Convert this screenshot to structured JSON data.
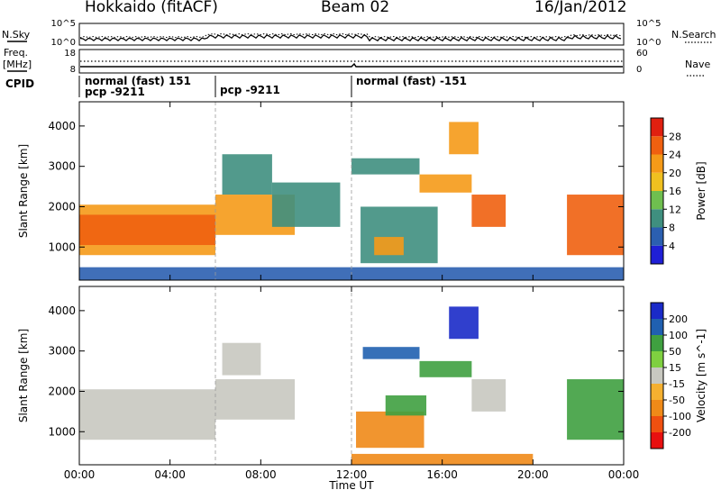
{
  "header": {
    "station": "Hokkaido (fitACF)",
    "beam": "Beam 02",
    "date": "16/Jan/2012"
  },
  "status_panels": {
    "nsky_label": "N.Sky",
    "nsearch_label": "N.Search",
    "freq_label_1": "Freq.",
    "freq_label_2": "[MHz]",
    "nave_label": "Nave",
    "cpid_label": "CPID",
    "noise_ticks_left": [
      "10^5",
      "10^0"
    ],
    "noise_ticks_right": [
      "10^5",
      "10^0"
    ],
    "freq_ticks": [
      "18",
      "8"
    ],
    "nave_ticks": [
      "60",
      "0"
    ],
    "cpid_segments": [
      {
        "line1": "normal (fast) 151",
        "line2": "pcp -9211",
        "start_h": 0
      },
      {
        "line1": "",
        "line2": "pcp -9211",
        "start_h": 6
      },
      {
        "line1": "normal (fast) -151",
        "line2": "",
        "start_h": 12
      }
    ]
  },
  "chart_data": [
    {
      "type": "heatmap",
      "name": "power",
      "xlabel": "Time UT",
      "ylabel": "Slant Range [km]",
      "x_ticks": [
        "00:00",
        "04:00",
        "08:00",
        "12:00",
        "16:00",
        "20:00",
        "00:00"
      ],
      "y_ticks": [
        1000,
        2000,
        3000,
        4000
      ],
      "xlim_hours": [
        0,
        24
      ],
      "ylim_km": [
        180,
        4600
      ],
      "colorbar_label": "Power [dB]",
      "colorbar_ticks": [
        4,
        8,
        12,
        16,
        20,
        24,
        28
      ],
      "colorbar_colors": [
        "#1f1fd6",
        "#2b5fb0",
        "#3f8f7f",
        "#6fbf4f",
        "#f0c020",
        "#f59a18",
        "#f06010",
        "#e02010"
      ],
      "regions": [
        {
          "t0": 0.0,
          "t1": 6.0,
          "r0": 800,
          "r1": 2050,
          "value": 24
        },
        {
          "t0": 0.0,
          "t1": 6.0,
          "r0": 1050,
          "r1": 1800,
          "value": 28
        },
        {
          "t0": 6.0,
          "t1": 9.5,
          "r0": 1300,
          "r1": 2300,
          "value": 22
        },
        {
          "t0": 6.3,
          "t1": 8.5,
          "r0": 2300,
          "r1": 3300,
          "value": 10
        },
        {
          "t0": 8.5,
          "t1": 11.5,
          "r0": 1500,
          "r1": 2600,
          "value": 9
        },
        {
          "t0": 12.0,
          "t1": 15.0,
          "r0": 2800,
          "r1": 3200,
          "value": 9
        },
        {
          "t0": 12.4,
          "t1": 15.8,
          "r0": 600,
          "r1": 2000,
          "value": 9
        },
        {
          "t0": 13.0,
          "t1": 14.3,
          "r0": 800,
          "r1": 1250,
          "value": 22
        },
        {
          "t0": 15.0,
          "t1": 17.3,
          "r0": 2350,
          "r1": 2800,
          "value": 22
        },
        {
          "t0": 17.3,
          "t1": 18.8,
          "r0": 1500,
          "r1": 2300,
          "value": 26
        },
        {
          "t0": 16.3,
          "t1": 17.6,
          "r0": 3300,
          "r1": 4100,
          "value": 22
        },
        {
          "t0": 21.5,
          "t1": 24.0,
          "r0": 800,
          "r1": 2300,
          "value": 25
        },
        {
          "t0": 0.0,
          "t1": 24.0,
          "r0": 180,
          "r1": 500,
          "value": 6
        }
      ]
    },
    {
      "type": "heatmap",
      "name": "velocity",
      "xlabel": "Time UT",
      "ylabel": "Slant Range [km]",
      "x_ticks": [
        "00:00",
        "04:00",
        "08:00",
        "12:00",
        "16:00",
        "20:00",
        "00:00"
      ],
      "y_ticks": [
        1000,
        2000,
        3000,
        4000
      ],
      "xlim_hours": [
        0,
        24
      ],
      "ylim_km": [
        180,
        4600
      ],
      "colorbar_label": "Velocity [m s^-1]",
      "colorbar_ticks": [
        -200,
        -100,
        -50,
        -15,
        15,
        50,
        100,
        200
      ],
      "colorbar_colors": [
        "#e81010",
        "#f05010",
        "#f08a18",
        "#f5b030",
        "#c8c8c0",
        "#7fd040",
        "#3fa040",
        "#2060b0",
        "#1a2ac8"
      ],
      "regions": [
        {
          "t0": 0.0,
          "t1": 6.0,
          "r0": 800,
          "r1": 2050,
          "value": 0
        },
        {
          "t0": 6.0,
          "t1": 9.5,
          "r0": 1300,
          "r1": 2300,
          "value": 0
        },
        {
          "t0": 6.3,
          "t1": 8.0,
          "r0": 2400,
          "r1": 3200,
          "value": 0
        },
        {
          "t0": 12.2,
          "t1": 15.2,
          "r0": 600,
          "r1": 1500,
          "value": -80
        },
        {
          "t0": 13.5,
          "t1": 15.3,
          "r0": 1400,
          "r1": 1900,
          "value": 60
        },
        {
          "t0": 15.0,
          "t1": 17.3,
          "r0": 2350,
          "r1": 2750,
          "value": 60
        },
        {
          "t0": 17.3,
          "t1": 18.8,
          "r0": 1500,
          "r1": 2300,
          "value": 0
        },
        {
          "t0": 16.3,
          "t1": 17.6,
          "r0": 3300,
          "r1": 4100,
          "value": 220
        },
        {
          "t0": 21.5,
          "t1": 24.0,
          "r0": 800,
          "r1": 2300,
          "value": 60
        },
        {
          "t0": 12.0,
          "t1": 20.0,
          "r0": 180,
          "r1": 450,
          "value": -80
        },
        {
          "t0": 12.5,
          "t1": 15.0,
          "r0": 2800,
          "r1": 3100,
          "value": 200
        }
      ]
    }
  ]
}
